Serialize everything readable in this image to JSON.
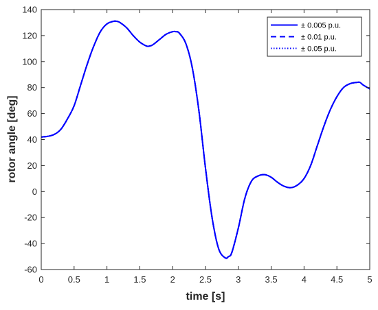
{
  "chart_data": {
    "type": "line",
    "title": "",
    "xlabel": "time [s]",
    "ylabel": "rotor angle [deg]",
    "xlim": [
      0,
      5
    ],
    "ylim": [
      -60,
      140
    ],
    "xticks": [
      0,
      0.5,
      1,
      1.5,
      2,
      2.5,
      3,
      3.5,
      4,
      4.5,
      5
    ],
    "yticks": [
      -60,
      -40,
      -20,
      0,
      20,
      40,
      60,
      80,
      100,
      120,
      140
    ],
    "grid": false,
    "legend_position": "top-right",
    "series": [
      {
        "name": "± 0.005 p.u.",
        "line_style": "solid",
        "color": "#0000ff",
        "x": [
          0,
          0.1,
          0.2,
          0.3,
          0.4,
          0.5,
          0.6,
          0.7,
          0.8,
          0.9,
          1.0,
          1.1,
          1.15,
          1.2,
          1.3,
          1.4,
          1.5,
          1.6,
          1.65,
          1.7,
          1.8,
          1.9,
          2.0,
          2.05,
          2.1,
          2.2,
          2.3,
          2.4,
          2.5,
          2.6,
          2.7,
          2.8,
          2.85,
          2.9,
          3.0,
          3.1,
          3.2,
          3.3,
          3.4,
          3.5,
          3.6,
          3.7,
          3.8,
          3.9,
          4.0,
          4.1,
          4.2,
          4.3,
          4.4,
          4.5,
          4.6,
          4.7,
          4.8,
          4.85,
          4.9,
          5.0
        ],
        "y": [
          42,
          42.5,
          44,
          48,
          56,
          66,
          82,
          98,
          112,
          123,
          129,
          131,
          131,
          130,
          126,
          120,
          115,
          112,
          112,
          113,
          117,
          121,
          123,
          123,
          122,
          114,
          95,
          62,
          18,
          -20,
          -44,
          -51,
          -50,
          -47,
          -28,
          -5,
          8,
          12,
          13,
          11,
          7,
          4,
          3,
          5,
          10,
          20,
          35,
          50,
          63,
          73,
          80,
          83,
          84,
          84,
          82,
          79
        ]
      },
      {
        "name": "± 0.01 p.u.",
        "line_style": "dashed",
        "color": "#0000ff",
        "x": [
          0,
          0.1,
          0.2,
          0.3,
          0.4,
          0.5,
          0.6,
          0.7,
          0.8,
          0.9,
          1.0,
          1.1,
          1.15,
          1.2,
          1.3,
          1.4,
          1.5,
          1.6,
          1.65,
          1.7,
          1.8,
          1.9,
          2.0,
          2.05,
          2.1,
          2.2,
          2.3,
          2.4,
          2.5,
          2.6,
          2.7,
          2.8,
          2.85,
          2.9,
          3.0,
          3.1,
          3.2,
          3.3,
          3.4,
          3.5,
          3.6,
          3.7,
          3.8,
          3.9,
          4.0,
          4.1,
          4.2,
          4.3,
          4.4,
          4.5,
          4.6,
          4.7,
          4.8,
          4.85,
          4.9,
          5.0
        ],
        "y": [
          42,
          42.5,
          44,
          48,
          56,
          66,
          82,
          98,
          112,
          123,
          129,
          131,
          131,
          130,
          126,
          120,
          115,
          112,
          112,
          113,
          117,
          121,
          123,
          123,
          122,
          114,
          95,
          62,
          18,
          -20,
          -44,
          -51,
          -50,
          -47,
          -28,
          -5,
          8,
          12,
          13,
          11,
          7,
          4,
          3,
          5,
          10,
          20,
          35,
          50,
          63,
          73,
          80,
          83,
          84,
          84,
          82,
          79
        ]
      },
      {
        "name": "± 0.05 p.u.",
        "line_style": "dotted",
        "color": "#0000ff",
        "x": [
          0,
          0.1,
          0.2,
          0.3,
          0.4,
          0.5,
          0.6,
          0.7,
          0.8,
          0.9,
          1.0,
          1.1,
          1.15,
          1.2,
          1.3,
          1.4,
          1.5,
          1.6,
          1.65,
          1.7,
          1.8,
          1.9,
          2.0,
          2.05,
          2.1,
          2.2,
          2.3,
          2.4,
          2.5,
          2.6,
          2.7,
          2.8,
          2.85,
          2.9,
          3.0,
          3.1,
          3.2,
          3.3,
          3.4,
          3.5,
          3.6,
          3.7,
          3.8,
          3.9,
          4.0,
          4.1,
          4.2,
          4.3,
          4.4,
          4.5,
          4.6,
          4.7,
          4.8,
          4.85,
          4.9,
          5.0
        ],
        "y": [
          42,
          42.5,
          44,
          48,
          56,
          66,
          82,
          98,
          112,
          123,
          129,
          131,
          131,
          130,
          126,
          120,
          115,
          112,
          112,
          113,
          117,
          121,
          123,
          123,
          122,
          114,
          95,
          62,
          18,
          -20,
          -44,
          -51,
          -50,
          -47,
          -28,
          -5,
          8,
          12,
          13,
          11,
          7,
          4,
          3,
          5,
          10,
          20,
          35,
          50,
          63,
          73,
          80,
          83,
          84,
          84,
          82,
          79
        ]
      }
    ]
  }
}
